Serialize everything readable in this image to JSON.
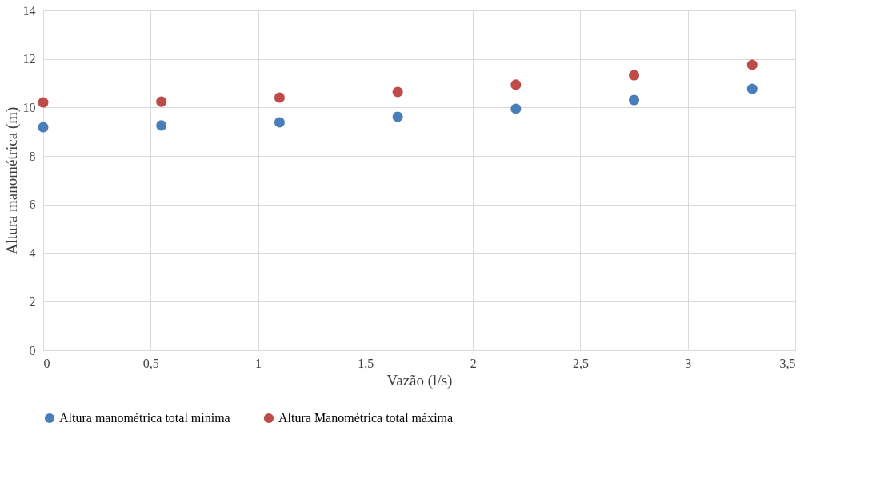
{
  "chart_data": {
    "type": "scatter",
    "xlabel": "Vazão (l/s)",
    "ylabel": "Altura manométrica (m)",
    "x": [
      0,
      0.55,
      1.1,
      1.65,
      2.2,
      2.75,
      3.3
    ],
    "series": [
      {
        "name": "Altura manométrica total mínima",
        "color": "#4a7ebb",
        "values": [
          9.19,
          9.26,
          9.39,
          9.62,
          9.95,
          10.31,
          10.77
        ]
      },
      {
        "name": "Altura Manométrica total máxima",
        "color": "#be4b48",
        "values": [
          10.21,
          10.24,
          10.41,
          10.64,
          10.94,
          11.33,
          11.76
        ]
      }
    ],
    "xlim": [
      0,
      3.5
    ],
    "xticks": [
      0,
      {
        "value": 0.5,
        "label": "0,5"
      },
      1,
      {
        "value": 1.5,
        "label": "1,5"
      },
      2,
      {
        "value": 2.5,
        "label": "2,5"
      },
      3,
      {
        "value": 3.5,
        "label": "3,5"
      }
    ],
    "ylim": [
      0,
      14
    ],
    "yticks": [
      0,
      2,
      4,
      6,
      8,
      10,
      12,
      14
    ],
    "grid": true,
    "legend": "bottom",
    "marker": "circle"
  }
}
